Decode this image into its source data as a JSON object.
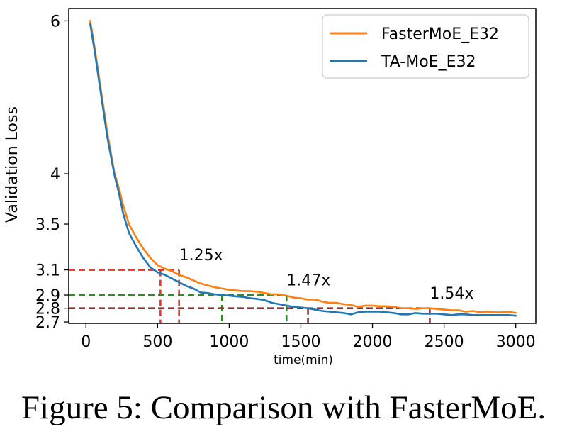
{
  "caption": "Figure 5: Comparison with FasterMoE.",
  "chart_data": {
    "type": "line",
    "xlabel": "time(min)",
    "ylabel": "Validation Loss",
    "xlim": [
      -120,
      3140
    ],
    "ylim": [
      2.69,
      6.2
    ],
    "y_scale": "log",
    "x_ticks": [
      0,
      500,
      1000,
      1500,
      2000,
      2500,
      3000
    ],
    "x_tick_labels": [
      "0",
      "500",
      "1000",
      "1500",
      "2000",
      "2500",
      "3000"
    ],
    "y_ticks": [
      6,
      4,
      3.5,
      3.1,
      2.9,
      2.8,
      2.7
    ],
    "y_tick_labels": [
      "6",
      "4",
      "3.5",
      "3.1",
      "2.9",
      "2.8",
      "2.7"
    ],
    "grid": false,
    "legend_position": "top-right",
    "series": [
      {
        "name": "FasterMoE_E32",
        "color": "#ff7f0e",
        "x": [
          30,
          60,
          100,
          150,
          200,
          230,
          260,
          300,
          350,
          400,
          450,
          500,
          550,
          600,
          650,
          700,
          750,
          800,
          850,
          900,
          950,
          1000,
          1050,
          1100,
          1150,
          1200,
          1250,
          1300,
          1350,
          1400,
          1450,
          1500,
          1550,
          1600,
          1650,
          1700,
          1750,
          1800,
          1850,
          1900,
          1950,
          2000,
          2050,
          2100,
          2150,
          2200,
          2250,
          2300,
          2350,
          2400,
          2450,
          2500,
          2550,
          2600,
          2650,
          2700,
          2750,
          2800,
          2850,
          2900,
          2950,
          3000
        ],
        "y": [
          6.0,
          5.6,
          5.05,
          4.45,
          4.0,
          3.85,
          3.68,
          3.5,
          3.38,
          3.28,
          3.2,
          3.14,
          3.11,
          3.09,
          3.06,
          3.04,
          3.015,
          2.99,
          2.975,
          2.96,
          2.95,
          2.94,
          2.935,
          2.93,
          2.93,
          2.925,
          2.915,
          2.905,
          2.905,
          2.895,
          2.88,
          2.875,
          2.865,
          2.865,
          2.85,
          2.84,
          2.84,
          2.83,
          2.825,
          2.81,
          2.82,
          2.82,
          2.815,
          2.815,
          2.81,
          2.8,
          2.8,
          2.795,
          2.8,
          2.8,
          2.795,
          2.79,
          2.785,
          2.785,
          2.775,
          2.78,
          2.77,
          2.775,
          2.77,
          2.77,
          2.775,
          2.765
        ]
      },
      {
        "name": "TA-MoE_E32",
        "color": "#1f77b4",
        "x": [
          30,
          60,
          100,
          150,
          200,
          230,
          260,
          300,
          350,
          400,
          450,
          500,
          550,
          600,
          650,
          700,
          750,
          800,
          850,
          900,
          950,
          1000,
          1050,
          1100,
          1150,
          1200,
          1250,
          1300,
          1350,
          1400,
          1450,
          1500,
          1550,
          1600,
          1650,
          1700,
          1750,
          1800,
          1850,
          1900,
          1950,
          2000,
          2050,
          2100,
          2150,
          2200,
          2250,
          2300,
          2350,
          2400,
          2450,
          2500,
          2550,
          2600,
          2650,
          2700,
          2750,
          2800,
          2850,
          2900,
          2950,
          3000
        ],
        "y": [
          5.95,
          5.55,
          5.0,
          4.4,
          3.98,
          3.8,
          3.6,
          3.42,
          3.3,
          3.2,
          3.12,
          3.08,
          3.06,
          3.03,
          3.0,
          2.97,
          2.95,
          2.92,
          2.915,
          2.905,
          2.9,
          2.895,
          2.89,
          2.885,
          2.875,
          2.87,
          2.86,
          2.84,
          2.83,
          2.82,
          2.81,
          2.805,
          2.8,
          2.79,
          2.78,
          2.775,
          2.77,
          2.765,
          2.755,
          2.77,
          2.775,
          2.775,
          2.775,
          2.77,
          2.765,
          2.755,
          2.755,
          2.765,
          2.76,
          2.76,
          2.76,
          2.755,
          2.75,
          2.755,
          2.755,
          2.75,
          2.75,
          2.75,
          2.75,
          2.75,
          2.75,
          2.745
        ]
      }
    ],
    "reference_lines": [
      {
        "y": 3.1,
        "x_targets": [
          520,
          650
        ],
        "color": "#e8322a",
        "annotation": "1.25x",
        "annotation_at": [
          650,
          3.12
        ]
      },
      {
        "y": 2.9,
        "x_targets": [
          950,
          1400
        ],
        "color": "#2e8b22",
        "annotation": "1.47x",
        "annotation_at": [
          1400,
          2.92
        ]
      },
      {
        "y": 2.8,
        "x_targets": [
          1550,
          2400
        ],
        "color": "#9b2a2a",
        "annotation": "1.54x",
        "annotation_at": [
          2400,
          2.82
        ]
      }
    ]
  }
}
